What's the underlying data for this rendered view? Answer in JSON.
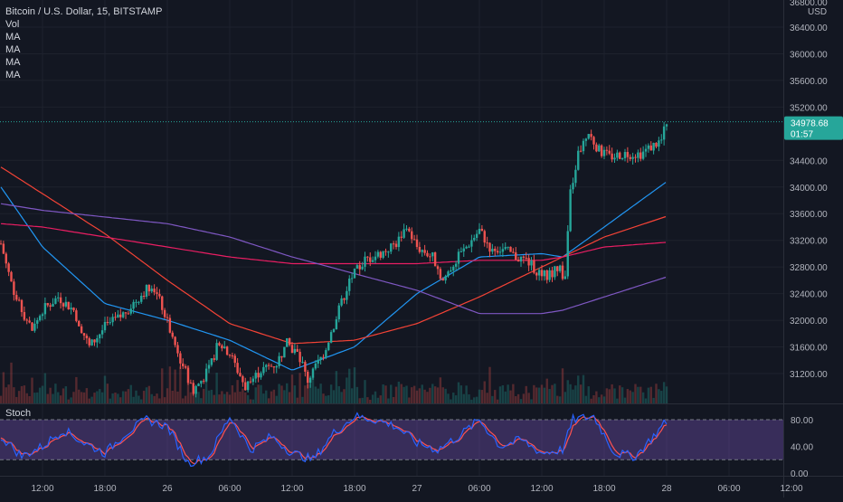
{
  "header": {
    "symbol_title": "Bitcoin / U.S. Dollar, 15, BITSTAMP",
    "indicators": [
      "Vol",
      "MA",
      "MA",
      "MA",
      "MA"
    ]
  },
  "price_axis": {
    "currency": "USD",
    "top_partial_label": "36800.00",
    "ticks": [
      "36400.00",
      "36000.00",
      "35600.00",
      "35200.00",
      "34400.00",
      "34000.00",
      "33600.00",
      "33200.00",
      "32800.00",
      "32400.00",
      "32000.00",
      "31600.00",
      "31200.00"
    ],
    "last_price": "34978.68",
    "countdown": "01:57"
  },
  "stoch_panel": {
    "title": "Stoch",
    "ticks": [
      "80.00",
      "40.00",
      "0.00"
    ]
  },
  "time_axis": {
    "labels": [
      "12:00",
      "18:00",
      "26",
      "06:00",
      "12:00",
      "18:00",
      "27",
      "06:00",
      "12:00",
      "18:00",
      "28",
      "06:00",
      "12:00"
    ]
  },
  "colors": {
    "background": "#131722",
    "up_candle": "#26a69a",
    "down_candle": "#ef5350",
    "ma_blue": "#2196f3",
    "ma_red": "#f44336",
    "ma_pink": "#e91e63",
    "ma_purple": "#7e57c2",
    "stoch_k": "#2962ff",
    "stoch_d": "#ff5252",
    "stoch_band": "#7e57c2",
    "last_price_badge": "#26a69a"
  },
  "chart_data": {
    "type": "candlestick",
    "symbol": "Bitcoin / U.S. Dollar",
    "interval": "15",
    "exchange": "BITSTAMP",
    "price_range": [
      30850,
      36850
    ],
    "time_labels": [
      "12:00",
      "18:00",
      "26",
      "06:00",
      "12:00",
      "18:00",
      "27",
      "06:00",
      "12:00",
      "18:00",
      "28",
      "06:00",
      "12:00"
    ],
    "price_path": [
      {
        "t": "25 08:00",
        "p": 33150
      },
      {
        "t": "25 09:30",
        "p": 32300
      },
      {
        "t": "25 11:00",
        "p": 31850
      },
      {
        "t": "25 12:00",
        "p": 32150
      },
      {
        "t": "25 13:30",
        "p": 32350
      },
      {
        "t": "25 15:00",
        "p": 32150
      },
      {
        "t": "25 16:30",
        "p": 31600
      },
      {
        "t": "25 18:00",
        "p": 31900
      },
      {
        "t": "25 19:30",
        "p": 32050
      },
      {
        "t": "25 21:00",
        "p": 32300
      },
      {
        "t": "25 22:30",
        "p": 32550
      },
      {
        "t": "25 23:30",
        "p": 32200
      },
      {
        "t": "26 01:00",
        "p": 31500
      },
      {
        "t": "26 02:30",
        "p": 30950
      },
      {
        "t": "26 04:00",
        "p": 31250
      },
      {
        "t": "26 05:00",
        "p": 31700
      },
      {
        "t": "26 06:00",
        "p": 31500
      },
      {
        "t": "26 07:30",
        "p": 31000
      },
      {
        "t": "26 09:00",
        "p": 31250
      },
      {
        "t": "26 10:30",
        "p": 31350
      },
      {
        "t": "26 11:30",
        "p": 31650
      },
      {
        "t": "26 12:30",
        "p": 31500
      },
      {
        "t": "26 13:30",
        "p": 31100
      },
      {
        "t": "26 15:00",
        "p": 31500
      },
      {
        "t": "26 16:30",
        "p": 32150
      },
      {
        "t": "26 17:30",
        "p": 32600
      },
      {
        "t": "26 19:00",
        "p": 32900
      },
      {
        "t": "26 20:30",
        "p": 33000
      },
      {
        "t": "26 22:00",
        "p": 33150
      },
      {
        "t": "26 23:00",
        "p": 33400
      },
      {
        "t": "27 00:00",
        "p": 33100
      },
      {
        "t": "27 01:30",
        "p": 32950
      },
      {
        "t": "27 02:30",
        "p": 32600
      },
      {
        "t": "27 03:30",
        "p": 32850
      },
      {
        "t": "27 05:00",
        "p": 33150
      },
      {
        "t": "27 06:00",
        "p": 33350
      },
      {
        "t": "27 07:00",
        "p": 33100
      },
      {
        "t": "27 08:30",
        "p": 33050
      },
      {
        "t": "27 09:30",
        "p": 32950
      },
      {
        "t": "27 10:30",
        "p": 32900
      },
      {
        "t": "27 11:30",
        "p": 32750
      },
      {
        "t": "27 12:30",
        "p": 32650
      },
      {
        "t": "27 13:30",
        "p": 32800
      },
      {
        "t": "27 14:15",
        "p": 32650
      },
      {
        "t": "27 14:45",
        "p": 33900
      },
      {
        "t": "27 15:30",
        "p": 34500
      },
      {
        "t": "27 16:30",
        "p": 34800
      },
      {
        "t": "27 17:30",
        "p": 34550
      },
      {
        "t": "27 18:30",
        "p": 34450
      },
      {
        "t": "27 20:00",
        "p": 34500
      },
      {
        "t": "27 21:30",
        "p": 34500
      },
      {
        "t": "27 22:30",
        "p": 34600
      },
      {
        "t": "27 23:30",
        "p": 34700
      },
      {
        "t": "28 00:00",
        "p": 34980
      }
    ],
    "moving_averages": [
      {
        "color": "#2196f3",
        "path": [
          {
            "t": "25 08:00",
            "p": 34000
          },
          {
            "t": "25 12:00",
            "p": 33100
          },
          {
            "t": "25 18:00",
            "p": 32250
          },
          {
            "t": "26 00:00",
            "p": 32000
          },
          {
            "t": "26 06:00",
            "p": 31700
          },
          {
            "t": "26 12:00",
            "p": 31250
          },
          {
            "t": "26 18:00",
            "p": 31600
          },
          {
            "t": "27 00:00",
            "p": 32400
          },
          {
            "t": "27 06:00",
            "p": 32950
          },
          {
            "t": "27 12:00",
            "p": 33000
          },
          {
            "t": "27 14:00",
            "p": 32950
          },
          {
            "t": "27 18:00",
            "p": 33400
          },
          {
            "t": "28 00:00",
            "p": 34080
          }
        ]
      },
      {
        "color": "#f44336",
        "path": [
          {
            "t": "25 08:00",
            "p": 34300
          },
          {
            "t": "25 12:00",
            "p": 33900
          },
          {
            "t": "25 18:00",
            "p": 33300
          },
          {
            "t": "26 00:00",
            "p": 32600
          },
          {
            "t": "26 06:00",
            "p": 31950
          },
          {
            "t": "26 12:00",
            "p": 31650
          },
          {
            "t": "26 18:00",
            "p": 31700
          },
          {
            "t": "27 00:00",
            "p": 31950
          },
          {
            "t": "27 06:00",
            "p": 32350
          },
          {
            "t": "27 12:00",
            "p": 32800
          },
          {
            "t": "27 14:00",
            "p": 32950
          },
          {
            "t": "27 18:00",
            "p": 33250
          },
          {
            "t": "28 00:00",
            "p": 33560
          }
        ]
      },
      {
        "color": "#e91e63",
        "path": [
          {
            "t": "25 08:00",
            "p": 33450
          },
          {
            "t": "25 12:00",
            "p": 33400
          },
          {
            "t": "25 18:00",
            "p": 33250
          },
          {
            "t": "26 00:00",
            "p": 33100
          },
          {
            "t": "26 06:00",
            "p": 32950
          },
          {
            "t": "26 12:00",
            "p": 32850
          },
          {
            "t": "26 18:00",
            "p": 32850
          },
          {
            "t": "27 00:00",
            "p": 32850
          },
          {
            "t": "27 06:00",
            "p": 32900
          },
          {
            "t": "27 12:00",
            "p": 32900
          },
          {
            "t": "27 14:00",
            "p": 32950
          },
          {
            "t": "27 18:00",
            "p": 33100
          },
          {
            "t": "28 00:00",
            "p": 33170
          }
        ]
      },
      {
        "color": "#7e57c2",
        "path": [
          {
            "t": "25 08:00",
            "p": 33750
          },
          {
            "t": "25 12:00",
            "p": 33650
          },
          {
            "t": "25 18:00",
            "p": 33550
          },
          {
            "t": "26 00:00",
            "p": 33450
          },
          {
            "t": "26 06:00",
            "p": 33250
          },
          {
            "t": "26 12:00",
            "p": 32950
          },
          {
            "t": "26 18:00",
            "p": 32700
          },
          {
            "t": "27 00:00",
            "p": 32450
          },
          {
            "t": "27 06:00",
            "p": 32100
          },
          {
            "t": "27 12:00",
            "p": 32100
          },
          {
            "t": "27 14:00",
            "p": 32150
          },
          {
            "t": "27 18:00",
            "p": 32350
          },
          {
            "t": "28 00:00",
            "p": 32650
          }
        ]
      }
    ],
    "stoch": {
      "ylim": [
        0,
        100
      ],
      "bands": [
        80,
        20
      ],
      "k_path": [
        {
          "t": "25 08:00",
          "v": 55
        },
        {
          "t": "25 10:00",
          "v": 25
        },
        {
          "t": "25 12:00",
          "v": 40
        },
        {
          "t": "25 14:00",
          "v": 65
        },
        {
          "t": "25 16:00",
          "v": 45
        },
        {
          "t": "25 18:00",
          "v": 30
        },
        {
          "t": "25 20:00",
          "v": 60
        },
        {
          "t": "25 22:00",
          "v": 80
        },
        {
          "t": "26 00:00",
          "v": 70
        },
        {
          "t": "26 02:00",
          "v": 15
        },
        {
          "t": "26 04:00",
          "v": 25
        },
        {
          "t": "26 06:00",
          "v": 85
        },
        {
          "t": "26 08:00",
          "v": 35
        },
        {
          "t": "26 10:00",
          "v": 55
        },
        {
          "t": "26 12:00",
          "v": 30
        },
        {
          "t": "26 14:00",
          "v": 20
        },
        {
          "t": "26 16:00",
          "v": 60
        },
        {
          "t": "26 18:00",
          "v": 85
        },
        {
          "t": "26 20:00",
          "v": 80
        },
        {
          "t": "26 22:00",
          "v": 70
        },
        {
          "t": "27 00:00",
          "v": 45
        },
        {
          "t": "27 02:00",
          "v": 35
        },
        {
          "t": "27 04:00",
          "v": 55
        },
        {
          "t": "27 06:00",
          "v": 80
        },
        {
          "t": "27 08:00",
          "v": 40
        },
        {
          "t": "27 10:00",
          "v": 50
        },
        {
          "t": "27 12:00",
          "v": 30
        },
        {
          "t": "27 14:00",
          "v": 35
        },
        {
          "t": "27 15:00",
          "v": 80
        },
        {
          "t": "27 17:00",
          "v": 85
        },
        {
          "t": "27 19:00",
          "v": 30
        },
        {
          "t": "27 21:00",
          "v": 25
        },
        {
          "t": "27 23:00",
          "v": 60
        },
        {
          "t": "28 00:00",
          "v": 78
        }
      ]
    }
  }
}
